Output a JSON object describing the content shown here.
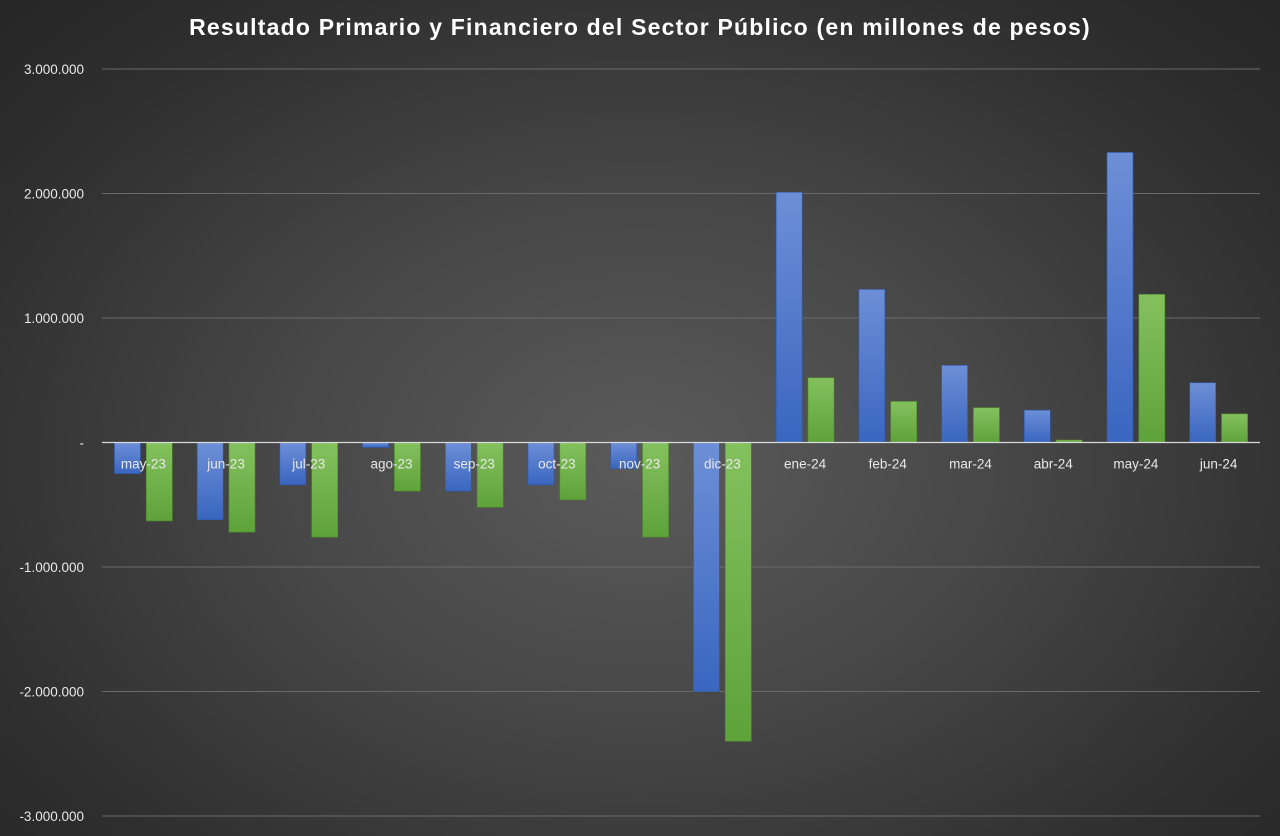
{
  "chart_data": {
    "type": "bar",
    "title": "Resultado Primario y Financiero del Sector Público (en millones de pesos)",
    "xlabel": "",
    "ylabel": "",
    "ylim": [
      -3000000,
      3000000
    ],
    "yticks": [
      3000000,
      2000000,
      1000000,
      0,
      -1000000,
      -2000000,
      -3000000
    ],
    "ytick_labels": [
      "3.000.000",
      "2.000.000",
      "1.000.000",
      "-",
      "-1.000.000",
      "-2.000.000",
      "-3.000.000"
    ],
    "grid": true,
    "legend": "none",
    "categories": [
      "may-23",
      "jun-23",
      "jul-23",
      "ago-23",
      "sep-23",
      "oct-23",
      "nov-23",
      "dic-23",
      "ene-24",
      "feb-24",
      "mar-24",
      "abr-24",
      "may-24",
      "jun-24"
    ],
    "series": [
      {
        "color": "#4472c4",
        "values": [
          -250000,
          -620000,
          -340000,
          -40000,
          -390000,
          -340000,
          -210000,
          -2000000,
          2010000,
          1230000,
          620000,
          260000,
          2330000,
          480000
        ]
      },
      {
        "color": "#70ad47",
        "values": [
          -630000,
          -720000,
          -760000,
          -390000,
          -520000,
          -460000,
          -760000,
          -2400000,
          520000,
          330000,
          280000,
          20000,
          1190000,
          230000
        ]
      }
    ]
  }
}
